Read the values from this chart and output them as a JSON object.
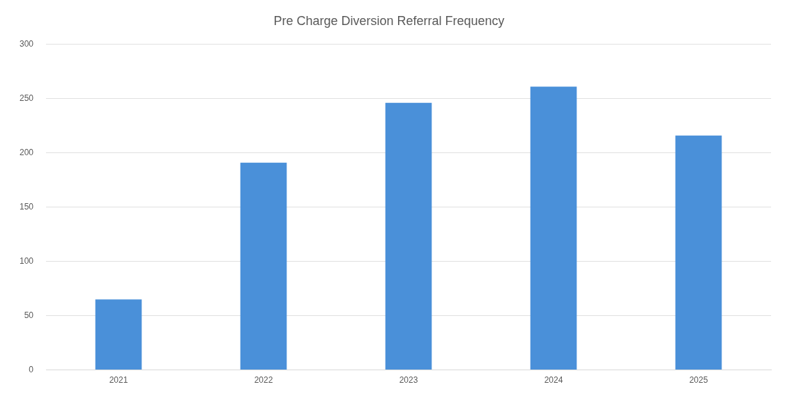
{
  "chart_data": {
    "type": "bar",
    "title": "Pre Charge Diversion Referral Frequency",
    "categories": [
      "2021",
      "2022",
      "2023",
      "2024",
      "2025"
    ],
    "values": [
      65,
      191,
      246,
      261,
      216
    ],
    "color": "#4a90d9",
    "ylim": [
      0,
      300
    ],
    "yticks": [
      0,
      50,
      100,
      150,
      200,
      250,
      300
    ],
    "grid": "y",
    "legend": false
  }
}
